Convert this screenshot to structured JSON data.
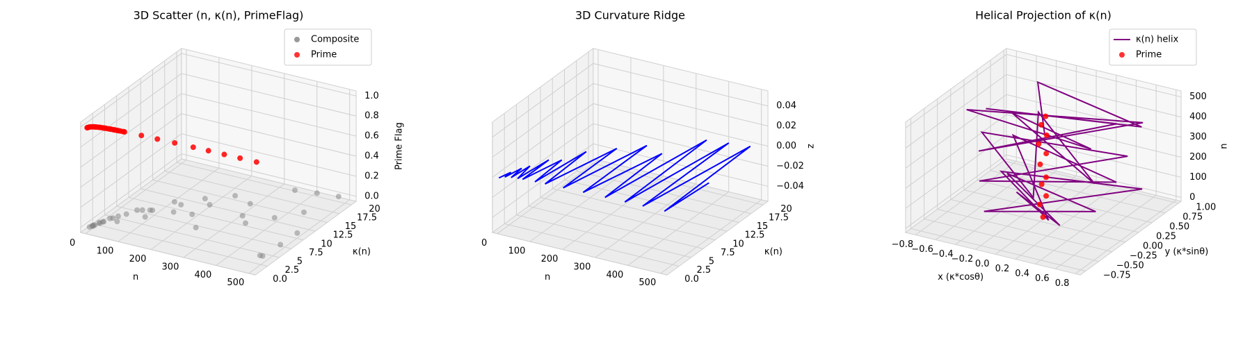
{
  "chart_data": [
    {
      "type": "scatter3d",
      "title": "3D Scatter (n, κ(n), PrimeFlag)",
      "xlabel": "n",
      "ylabel": "κ(n)",
      "zlabel": "Prime Flag",
      "xlim": [
        -15,
        520
      ],
      "ylim": [
        0,
        21
      ],
      "zlim": [
        -0.05,
        1.05
      ],
      "xticks": [
        0,
        100,
        200,
        300,
        400,
        500
      ],
      "yticks": [
        {
          "value": 0,
          "label": "0.0"
        },
        2.5,
        5,
        7.5,
        10,
        12.5,
        15,
        17.5,
        20
      ],
      "zticks": [
        {
          "value": 0,
          "label": "0.0"
        },
        0.2,
        0.4,
        0.6,
        0.8,
        {
          "value": 1,
          "label": "1.0"
        }
      ],
      "legend": "upper right",
      "series": [
        {
          "name": "Composite",
          "color": "#808080",
          "mode": "scatter",
          "x": [
            4,
            6,
            8,
            9,
            10,
            12,
            16,
            18,
            20,
            24,
            30,
            36,
            48,
            50,
            60,
            72,
            90,
            96,
            100,
            120,
            144,
            150,
            180,
            200,
            210,
            240,
            250,
            300,
            320,
            350,
            360,
            400,
            420,
            450,
            480,
            485,
            493,
            498,
            500
          ],
          "y": [
            0.56,
            0.97,
            1.13,
            0.89,
            1.25,
            2.02,
            1.88,
            2.35,
            2.43,
            3.44,
            3.68,
            4.36,
            5.24,
            3.18,
            6.65,
            6.95,
            7.31,
            7.41,
            5.61,
            10.37,
            10.09,
            8.14,
            12.65,
            8.6,
            11.58,
            14.83,
            5.98,
            13.9,
            10.93,
            9.52,
            19.12,
            12.17,
            19.65,
            14.88,
            20.05,
            3.35,
            3.36,
            6.72,
            10.09
          ],
          "z": [
            0,
            0,
            0,
            0,
            0,
            0,
            0,
            0,
            0,
            0,
            0,
            0,
            0,
            0,
            0,
            0,
            0,
            0,
            0,
            0,
            0,
            0,
            0,
            0,
            0,
            0,
            0,
            0,
            0,
            0,
            0,
            0,
            0,
            0,
            0,
            0,
            0,
            0,
            0
          ]
        },
        {
          "name": "Prime",
          "color": "#ff0000",
          "mode": "scatter",
          "x": [
            2,
            3,
            5,
            7,
            11,
            13,
            17,
            19,
            23,
            29,
            31,
            37,
            41,
            43,
            47,
            53,
            59,
            61,
            67,
            71,
            73,
            79,
            83,
            89,
            97,
            101,
            151,
            199,
            251,
            307,
            353,
            401,
            449,
            499
          ],
          "y": [
            0.19,
            0.3,
            0.44,
            0.53,
            0.65,
            0.69,
            0.77,
            0.8,
            0.85,
            0.91,
            0.93,
            0.98,
            1.01,
            1.02,
            1.04,
            1.07,
            1.1,
            1.11,
            1.14,
            1.15,
            1.16,
            1.18,
            1.2,
            1.22,
            1.24,
            1.25,
            1.36,
            1.43,
            1.5,
            1.55,
            1.59,
            1.62,
            1.65,
            1.68
          ],
          "z": [
            1,
            1,
            1,
            1,
            1,
            1,
            1,
            1,
            1,
            1,
            1,
            1,
            1,
            1,
            1,
            1,
            1,
            1,
            1,
            1,
            1,
            1,
            1,
            1,
            1,
            1,
            1,
            1,
            1,
            1,
            1,
            1,
            1,
            1
          ]
        }
      ]
    },
    {
      "type": "line3d",
      "title": "3D Curvature Ridge",
      "xlabel": "n",
      "ylabel": "κ(n)",
      "zlabel": "z",
      "xlim": [
        -15,
        520
      ],
      "ylim": [
        0,
        21
      ],
      "zlim": [
        -0.055,
        0.055
      ],
      "xticks": [
        0,
        100,
        200,
        300,
        400,
        500
      ],
      "yticks": [
        {
          "value": 0,
          "label": "0.0"
        },
        2.5,
        5,
        7.5,
        10,
        12.5,
        15,
        17.5,
        20
      ],
      "zticks": [
        {
          "value": -0.04,
          "label": "−0.04"
        },
        {
          "value": -0.02,
          "label": "−0.02"
        },
        {
          "value": 0,
          "label": "0.00"
        },
        0.02,
        0.04
      ],
      "series": [
        {
          "color": "#0000ff",
          "mode": "line",
          "x": [
            2,
            4,
            6,
            12,
            13,
            24,
            29,
            36,
            47,
            60,
            61,
            90,
            97,
            120,
            127,
            180,
            181,
            240,
            241,
            300,
            307,
            360,
            367,
            420,
            421,
            480,
            487,
            500
          ],
          "y": [
            0.19,
            0.56,
            0.97,
            2.02,
            0.69,
            3.44,
            0.91,
            4.36,
            1.04,
            6.65,
            1.11,
            7.31,
            1.24,
            10.37,
            1.31,
            12.65,
            1.41,
            14.83,
            1.49,
            13.9,
            1.55,
            19.12,
            1.6,
            19.65,
            1.64,
            20.05,
            1.68,
            10.09
          ],
          "z": [
            0,
            0,
            0,
            0,
            0,
            0,
            0,
            0,
            0,
            0,
            0,
            0,
            0,
            0,
            0,
            0,
            0,
            0,
            0,
            0,
            0,
            0,
            0,
            0,
            0,
            0,
            0,
            0
          ]
        }
      ]
    },
    {
      "type": "line3d",
      "title": "Helical Projection of κ(n)",
      "xlabel": "x (κ*cosθ)",
      "ylabel": "y (κ*sinθ)",
      "zlabel": "n",
      "xlim": [
        -0.9,
        0.85
      ],
      "ylim": [
        -0.85,
        1.05
      ],
      "zlim": [
        -20,
        530
      ],
      "xticks": [
        {
          "value": -0.8,
          "label": "−0.8"
        },
        {
          "value": -0.6,
          "label": "−0.6"
        },
        {
          "value": -0.4,
          "label": "−0.4"
        },
        {
          "value": -0.2,
          "label": "−0.2"
        },
        {
          "value": 0,
          "label": "0.0"
        },
        0.2,
        0.4,
        0.6,
        0.8
      ],
      "yticks": [
        {
          "value": -0.75,
          "label": "−0.75"
        },
        {
          "value": -0.5,
          "label": "−0.50"
        },
        {
          "value": -0.25,
          "label": "−0.25"
        },
        {
          "value": 0,
          "label": "0.00"
        },
        0.25,
        {
          "value": 0.5,
          "label": "0.50"
        },
        0.75,
        {
          "value": 1,
          "label": "1.00"
        }
      ],
      "zticks": [
        0,
        100,
        200,
        300,
        400,
        500
      ],
      "legend": "upper right",
      "series": [
        {
          "name": "κ(n) helix",
          "color": "#800080",
          "mode": "line",
          "x": [
            0.05,
            -0.4,
            0.3,
            -0.6,
            0.5,
            -0.3,
            0.7,
            -0.5,
            0.4,
            -0.7,
            0.6,
            -0.4,
            0.5,
            -0.8,
            0.3,
            -0.5,
            0.7,
            -0.6,
            0.4,
            -0.9,
            0.6,
            -0.3,
            0.5,
            -0.6,
            0.8,
            -0.4,
            0.2
          ],
          "y": [
            0.02,
            0.3,
            -0.2,
            0.5,
            0.1,
            -0.5,
            0.6,
            0.2,
            -0.6,
            0.8,
            0.3,
            -0.4,
            0.7,
            0.4,
            -0.7,
            0.9,
            -0.3,
            0.6,
            0.2,
            0.3,
            0.8,
            -0.6,
            0.5,
            0.1,
            0.4,
            0.7,
            -0.3
          ],
          "z": [
            2,
            20,
            35,
            50,
            70,
            90,
            110,
            130,
            150,
            170,
            190,
            210,
            230,
            250,
            270,
            290,
            310,
            330,
            350,
            370,
            390,
            410,
            430,
            450,
            470,
            490,
            500
          ]
        },
        {
          "name": "Prime",
          "color": "#ff0000",
          "mode": "scatter",
          "x": [
            0.02,
            -0.03,
            0.03,
            -0.02,
            0.04,
            -0.03,
            0.02,
            -0.04,
            0.03,
            -0.02,
            0.03
          ],
          "y": [
            0.01,
            0.04,
            0.05,
            0.06,
            0.03,
            0.05,
            0.07,
            0.04,
            0.06,
            0.05,
            0.04
          ],
          "z": [
            2,
            53,
            101,
            151,
            199,
            251,
            307,
            353,
            401,
            449,
            499
          ]
        }
      ]
    }
  ]
}
